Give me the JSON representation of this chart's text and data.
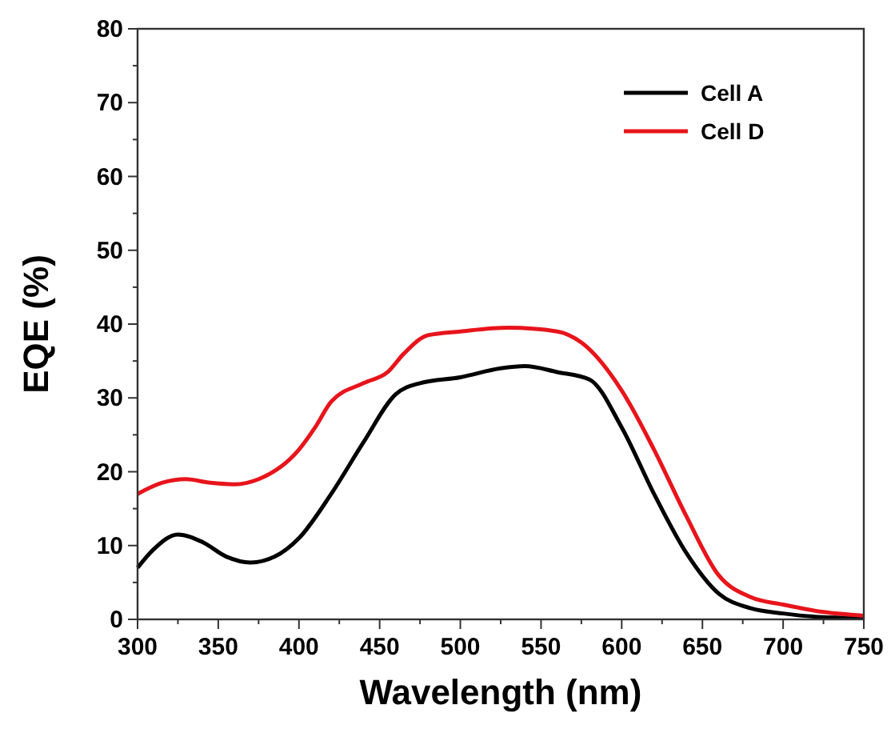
{
  "chart_data": {
    "type": "line",
    "xlabel": "Wavelength (nm)",
    "ylabel": "EQE (%)",
    "xlim": [
      300,
      750
    ],
    "xticks": [
      300,
      350,
      400,
      450,
      500,
      550,
      600,
      650,
      700,
      750
    ],
    "ylim": [
      0,
      80
    ],
    "yticks": [
      0,
      10,
      20,
      30,
      40,
      50,
      60,
      70,
      80
    ],
    "grid": false,
    "legend": "top right",
    "marker": "none",
    "line_style": "solid",
    "series": [
      {
        "name": "Cell A",
        "color": "#000000",
        "x": [
          300,
          310,
          325,
          340,
          355,
          370,
          385,
          400,
          420,
          440,
          460,
          475,
          500,
          525,
          540,
          560,
          580,
          600,
          620,
          640,
          660,
          680,
          700,
          725,
          750
        ],
        "values": [
          7,
          9.5,
          11.5,
          10.5,
          8.5,
          7.7,
          8.5,
          11,
          17,
          24,
          30.5,
          32,
          32.8,
          34,
          34.3,
          33.5,
          32.5,
          26,
          17,
          9,
          3.5,
          1.5,
          0.8,
          0.3,
          0.2
        ]
      },
      {
        "name": "Cell D",
        "color": "#e8141b",
        "x": [
          300,
          315,
          330,
          345,
          360,
          375,
          400,
          410,
          420,
          440,
          455,
          465,
          480,
          500,
          530,
          560,
          575,
          600,
          620,
          640,
          660,
          680,
          700,
          725,
          750
        ],
        "values": [
          17,
          18.5,
          19,
          18.5,
          18.3,
          19,
          23,
          26,
          29.5,
          32,
          33.5,
          36,
          38.5,
          39,
          39.5,
          39,
          37.5,
          31,
          23,
          14,
          6,
          3,
          2,
          1,
          0.5
        ]
      }
    ]
  }
}
